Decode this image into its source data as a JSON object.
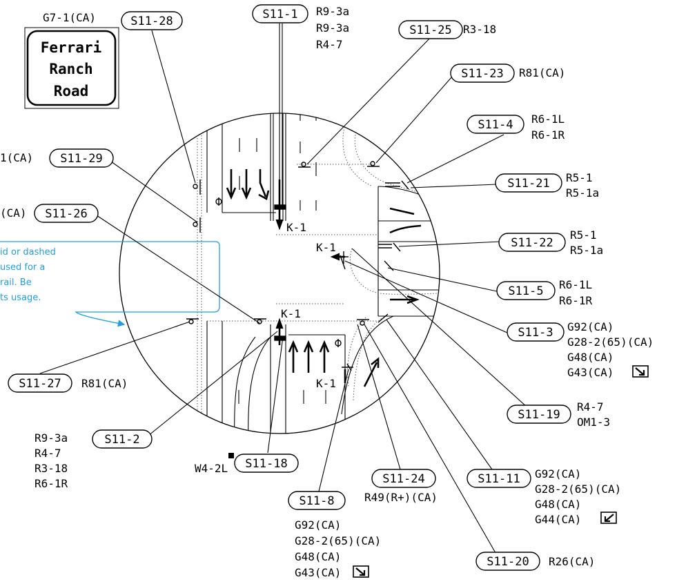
{
  "sign_panel": {
    "code": "G7-1(CA)",
    "lines": [
      "Ferrari",
      "Ranch",
      "Road"
    ]
  },
  "note": {
    "lines": [
      "id or dashed",
      "used for a",
      "rail. Be",
      "ts usage."
    ],
    "color": "#1fa0e0"
  },
  "lane_markers": {
    "k1_a": "K-1",
    "k1_b": "K-1",
    "k1_c": "K-1",
    "k1_d": "K-1"
  },
  "callouts": [
    {
      "id": "S11-1",
      "codes": [
        "R9-3a",
        "R9-3a",
        "R4-7"
      ]
    },
    {
      "id": "S11-25",
      "codes": [
        "R3-18"
      ]
    },
    {
      "id": "S11-23",
      "codes": [
        "R81(CA)"
      ]
    },
    {
      "id": "S11-4",
      "codes": [
        "R6-1L",
        "R6-1R"
      ]
    },
    {
      "id": "S11-21",
      "codes": [
        "R5-1",
        "R5-1a"
      ]
    },
    {
      "id": "S11-22",
      "codes": [
        "R5-1",
        "R5-1a"
      ]
    },
    {
      "id": "S11-5",
      "codes": [
        "R6-1L",
        "R6-1R"
      ]
    },
    {
      "id": "S11-3",
      "codes": [
        "G92(CA)",
        "G28-2(65)(CA)",
        "G48(CA)",
        "G43(CA)"
      ]
    },
    {
      "id": "S11-19",
      "codes": [
        "R4-7",
        "OM1-3"
      ]
    },
    {
      "id": "S11-11",
      "codes": [
        "G92(CA)",
        "G28-2(65)(CA)",
        "G48(CA)",
        "G44(CA)"
      ]
    },
    {
      "id": "S11-20",
      "codes": [
        "R26(CA)"
      ]
    },
    {
      "id": "S11-24",
      "codes": [
        "R49(R+)(CA)"
      ]
    },
    {
      "id": "S11-8",
      "codes": [
        "G92(CA)",
        "G28-2(65)(CA)",
        "G48(CA)",
        "G43(CA)"
      ]
    },
    {
      "id": "S11-18",
      "codes": [
        "W4-2L"
      ]
    },
    {
      "id": "S11-2",
      "codes": [
        "R9-3a",
        "R4-7",
        "R3-18",
        "R6-1R"
      ]
    },
    {
      "id": "S11-27",
      "codes": [
        "R81(CA)"
      ]
    },
    {
      "id": "S11-26",
      "codes": [
        "(CA)"
      ]
    },
    {
      "id": "S11-29",
      "codes": [
        "1(CA)"
      ]
    },
    {
      "id": "S11-28",
      "codes": []
    }
  ]
}
